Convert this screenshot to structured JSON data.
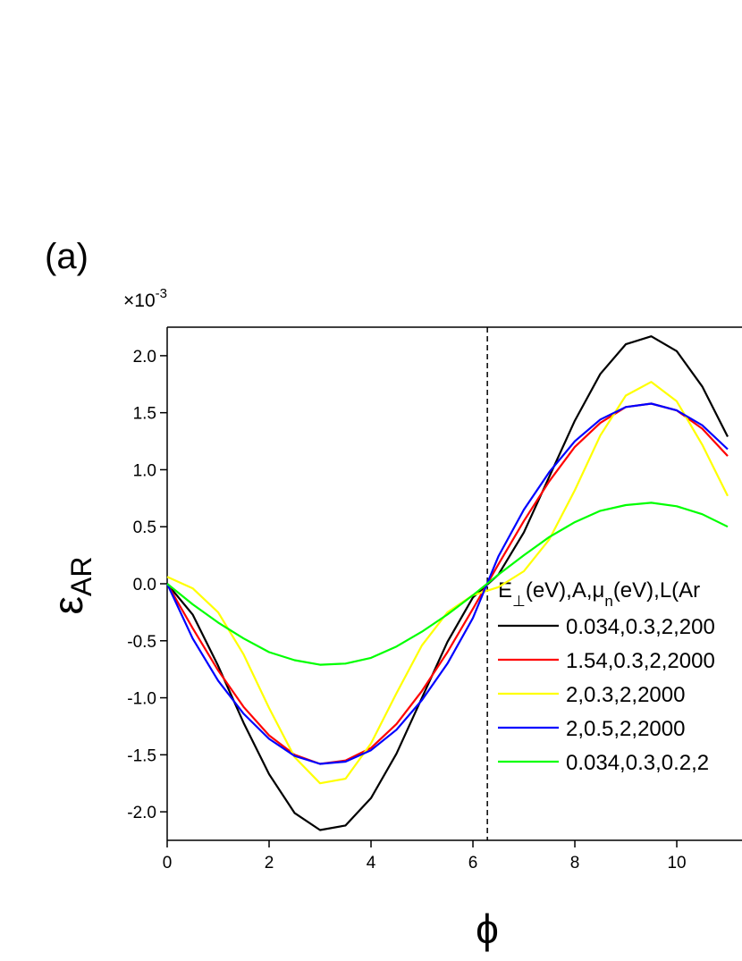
{
  "chart_data": {
    "type": "line",
    "annotation": "(a)",
    "y_multiplier": {
      "base": "×10",
      "exponent": "-3"
    },
    "ylabel": {
      "symbol": "ε",
      "subscript": "AR"
    },
    "xlabel": "ϕ",
    "legend_title": [
      {
        "text": "E"
      },
      {
        "text": "⊥",
        "sub": true
      },
      {
        "text": "(eV),A,μ"
      },
      {
        "text": "n",
        "sub": true
      },
      {
        "text": "(eV),L(Ar"
      }
    ],
    "x": [
      0,
      0.5,
      1,
      1.5,
      2,
      2.5,
      3,
      3.5,
      4,
      4.5,
      5,
      5.5,
      6,
      6.5,
      7,
      7.5,
      8,
      8.5,
      9,
      9.5,
      10,
      10.5,
      11
    ],
    "series": [
      {
        "name": "0.034,0.3,2,200",
        "color": "#000000",
        "values": [
          0,
          -0.27,
          -0.72,
          -1.22,
          -1.67,
          -2.01,
          -2.16,
          -2.12,
          -1.88,
          -1.49,
          -1.0,
          -0.51,
          -0.12,
          0.08,
          0.45,
          0.94,
          1.43,
          1.84,
          2.1,
          2.17,
          2.04,
          1.73,
          1.29
        ]
      },
      {
        "name": "1.54,0.3,2,2000",
        "color": "#ff0000",
        "values": [
          0,
          -0.39,
          -0.76,
          -1.08,
          -1.33,
          -1.5,
          -1.58,
          -1.55,
          -1.44,
          -1.23,
          -0.94,
          -0.6,
          -0.22,
          0.17,
          0.55,
          0.9,
          1.2,
          1.41,
          1.55,
          1.58,
          1.52,
          1.36,
          1.12
        ]
      },
      {
        "name": "2,0.3,2,2000",
        "color": "#ffff00",
        "values": [
          0.06,
          -0.04,
          -0.25,
          -0.62,
          -1.09,
          -1.52,
          -1.75,
          -1.71,
          -1.4,
          -0.96,
          -0.54,
          -0.25,
          -0.1,
          -0.03,
          0.11,
          0.39,
          0.82,
          1.3,
          1.65,
          1.77,
          1.6,
          1.22,
          0.77
        ]
      },
      {
        "name": "2,0.5,2,2000",
        "color": "#0000ff",
        "values": [
          0,
          -0.48,
          -0.85,
          -1.14,
          -1.36,
          -1.51,
          -1.58,
          -1.56,
          -1.46,
          -1.28,
          -1.02,
          -0.7,
          -0.3,
          0.24,
          0.65,
          0.98,
          1.25,
          1.44,
          1.55,
          1.58,
          1.52,
          1.39,
          1.18
        ]
      },
      {
        "name": "0.034,0.3,0.2,2",
        "color": "#00ff00",
        "values": [
          0,
          -0.18,
          -0.34,
          -0.48,
          -0.6,
          -0.67,
          -0.71,
          -0.7,
          -0.65,
          -0.55,
          -0.42,
          -0.27,
          -0.1,
          0.08,
          0.25,
          0.41,
          0.54,
          0.64,
          0.69,
          0.71,
          0.68,
          0.61,
          0.5
        ]
      }
    ],
    "vline": 6.283,
    "xlim": [
      0,
      11.28
    ],
    "ylim": [
      -2.25,
      2.25
    ],
    "xticks": [
      0,
      2,
      4,
      6,
      8,
      10
    ],
    "yticks": [
      {
        "value": -2,
        "label": "-2.0"
      },
      {
        "value": -1.5,
        "label": "-1.5"
      },
      {
        "value": -1,
        "label": "-1.0"
      },
      {
        "value": -0.5,
        "label": "-0.5"
      },
      {
        "value": 0,
        "label": "0.0"
      },
      {
        "value": 0.5,
        "label": "0.5"
      },
      {
        "value": 1,
        "label": "1.0"
      },
      {
        "value": 1.5,
        "label": "1.5"
      },
      {
        "value": 2,
        "label": "2.0"
      }
    ]
  }
}
